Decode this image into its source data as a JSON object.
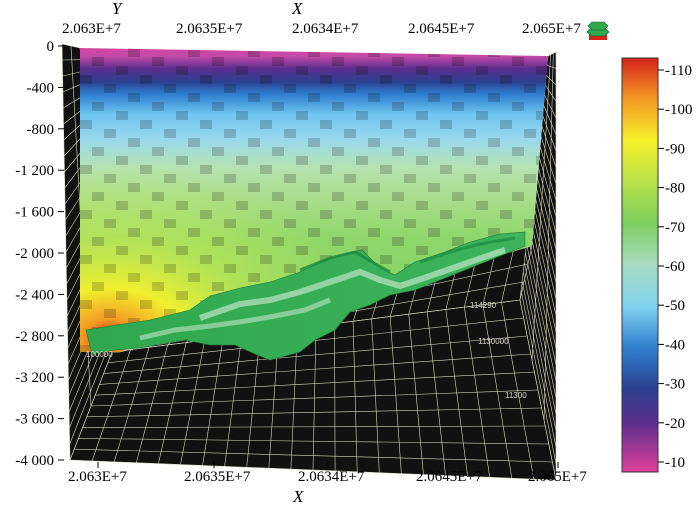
{
  "axes": {
    "top_title_x": "X",
    "top_title_y": "Y",
    "bottom_title": "X",
    "top_ticks": [
      "2.063E+7",
      "2.0635E+7",
      "2.0634E+7",
      "2.0645E+7",
      "2.065E+7"
    ],
    "bottom_ticks": [
      "2.063E+7",
      "2.0635E+7",
      "2.0634E+7",
      "2.0645E+7",
      "2.065E+7"
    ],
    "depth_ticks": [
      "0",
      "-400",
      "-800",
      "-1 200",
      "-1 600",
      "-2 000",
      "-2 400",
      "-2 800",
      "-3 200",
      "-3 600",
      "-4 000"
    ]
  },
  "side_labels": [
    "114290",
    "1130000",
    "11300",
    "100000"
  ],
  "colorbar": {
    "ticks": [
      "110",
      "100",
      "90",
      "80",
      "70",
      "60",
      "50",
      "40",
      "30",
      "20",
      "10"
    ]
  },
  "colors": {
    "magenta": "#e0409c",
    "purple": "#5a2e8c",
    "navy": "#2d3f8f",
    "blue": "#2f7fd0",
    "cyan": "#7fd2ef",
    "light_green": "#b5e3a8",
    "green": "#7ccf5d",
    "yellow": "#f6f12b",
    "orange": "#f49a24",
    "red": "#d6241c",
    "surface_green": "#2fa84f",
    "grid_dark": "#111111",
    "grid_line": "#d8d8c0"
  },
  "legend_icon": "layer-stack-icon"
}
